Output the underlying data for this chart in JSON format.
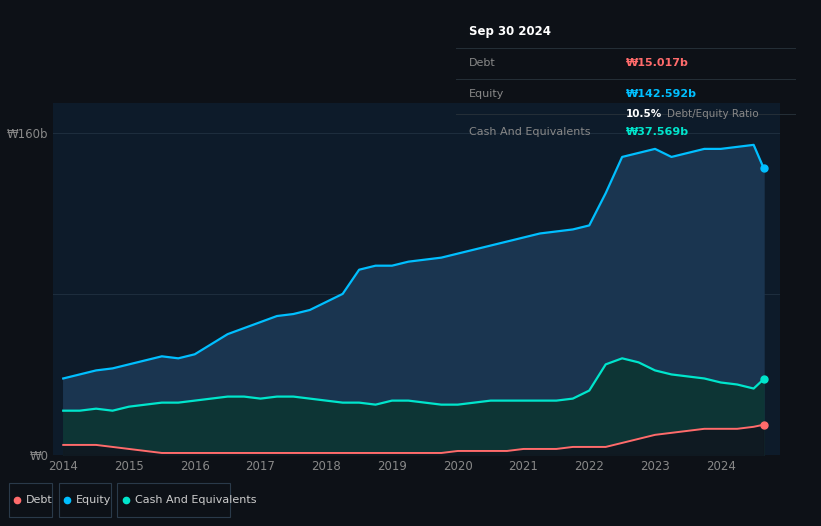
{
  "bg_color": "#0d1117",
  "plot_bg_color": "#0d1b2a",
  "equity_color": "#00bfff",
  "debt_color": "#ff6b6b",
  "cash_color": "#00e5cc",
  "equity_fill": "#1a3550",
  "cash_fill": "#0d3535",
  "info_box_bg": "#080c10",
  "info_date": "Sep 30 2024",
  "info_debt_label": "Debt",
  "info_debt_value": "₩15.017b",
  "info_equity_label": "Equity",
  "info_equity_value": "₩142.592b",
  "info_ratio": "10.5%",
  "info_ratio_label": "Debt/Equity Ratio",
  "info_cash_label": "Cash And Equivalents",
  "info_cash_value": "₩37.569b",
  "ylabel_160": "₩160b",
  "ylabel_0": "₩0",
  "years": [
    2014.0,
    2014.25,
    2014.5,
    2014.75,
    2015.0,
    2015.25,
    2015.5,
    2015.75,
    2016.0,
    2016.25,
    2016.5,
    2016.75,
    2017.0,
    2017.25,
    2017.5,
    2017.75,
    2018.0,
    2018.25,
    2018.5,
    2018.75,
    2019.0,
    2019.25,
    2019.5,
    2019.75,
    2020.0,
    2020.25,
    2020.5,
    2020.75,
    2021.0,
    2021.25,
    2021.5,
    2021.75,
    2022.0,
    2022.25,
    2022.5,
    2022.75,
    2023.0,
    2023.25,
    2023.5,
    2023.75,
    2024.0,
    2024.25,
    2024.5,
    2024.65
  ],
  "equity": [
    38,
    40,
    42,
    43,
    45,
    47,
    49,
    48,
    50,
    55,
    60,
    63,
    66,
    69,
    70,
    72,
    76,
    80,
    92,
    94,
    94,
    96,
    97,
    98,
    100,
    102,
    104,
    106,
    108,
    110,
    111,
    112,
    114,
    130,
    148,
    150,
    152,
    148,
    150,
    152,
    152,
    153,
    154,
    142.592
  ],
  "debt": [
    5,
    5,
    5,
    4,
    3,
    2,
    1,
    1,
    1,
    1,
    1,
    1,
    1,
    1,
    1,
    1,
    1,
    1,
    1,
    1,
    1,
    1,
    1,
    1,
    2,
    2,
    2,
    2,
    3,
    3,
    3,
    4,
    4,
    4,
    6,
    8,
    10,
    11,
    12,
    13,
    13,
    13,
    14,
    15.017
  ],
  "cash": [
    22,
    22,
    23,
    22,
    24,
    25,
    26,
    26,
    27,
    28,
    29,
    29,
    28,
    29,
    29,
    28,
    27,
    26,
    26,
    25,
    27,
    27,
    26,
    25,
    25,
    26,
    27,
    27,
    27,
    27,
    27,
    28,
    32,
    45,
    48,
    46,
    42,
    40,
    39,
    38,
    36,
    35,
    33,
    37.569
  ],
  "ylim": [
    0,
    175
  ],
  "xlim": [
    2013.85,
    2024.9
  ],
  "x_ticks": [
    2014,
    2015,
    2016,
    2017,
    2018,
    2019,
    2020,
    2021,
    2022,
    2023,
    2024
  ]
}
